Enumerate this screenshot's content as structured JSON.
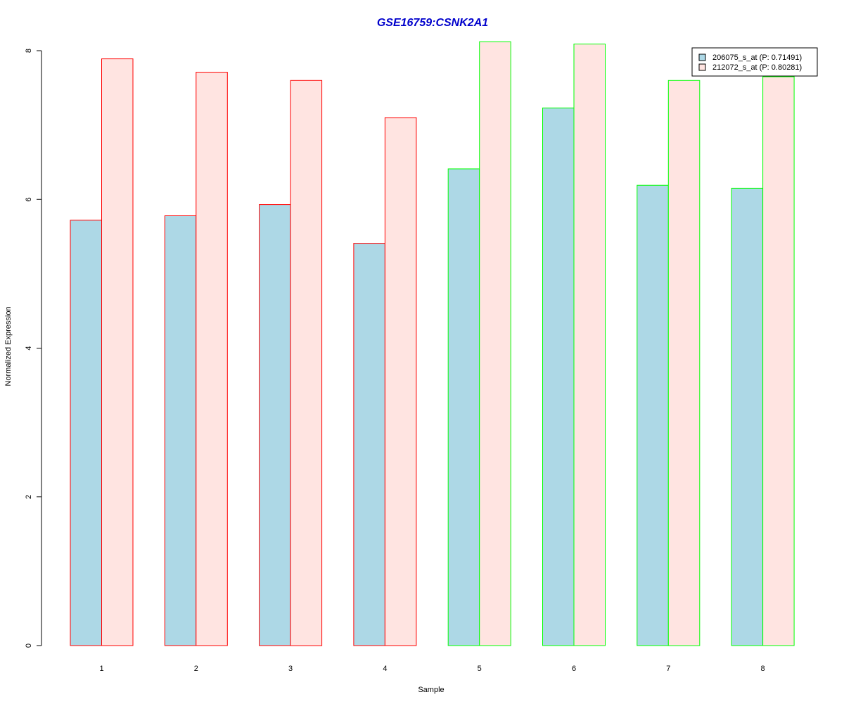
{
  "chart_data": {
    "type": "bar",
    "title": "GSE16759:CSNK2A1",
    "title_color": "#0000CC",
    "xlabel": "Sample",
    "ylabel": "Normalized Expression",
    "ylim": [
      0,
      8
    ],
    "yticks": [
      0,
      2,
      4,
      6,
      8
    ],
    "categories": [
      "1",
      "2",
      "3",
      "4",
      "5",
      "6",
      "7",
      "8"
    ],
    "group_border_colors": [
      "#FF0000",
      "#FF0000",
      "#FF0000",
      "#FF0000",
      "#00FF00",
      "#00FF00",
      "#00FF00",
      "#00FF00"
    ],
    "series": [
      {
        "name": "206075_s_at (P: 0.71491)",
        "color": "#ADD8E6",
        "values": [
          5.72,
          5.78,
          5.93,
          5.41,
          6.41,
          7.23,
          6.19,
          6.15
        ]
      },
      {
        "name": "212072_s_at (P: 0.80281)",
        "color": "#FFE4E1",
        "values": [
          7.89,
          7.71,
          7.6,
          7.1,
          8.12,
          8.09,
          7.6,
          7.65
        ]
      }
    ],
    "legend_position": "top-right",
    "grid": false
  }
}
